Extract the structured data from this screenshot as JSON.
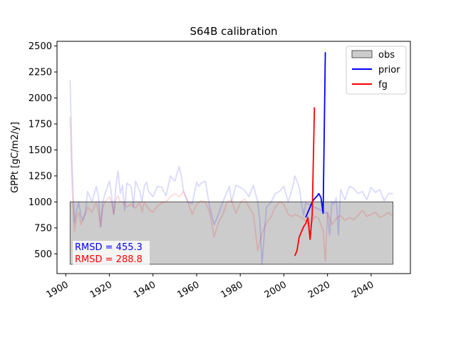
{
  "chart_data": {
    "type": "line",
    "title": "S64B calibration",
    "xlabel": "",
    "ylabel": "GPPt [gC/m2/y]",
    "xlim": [
      1896,
      2058
    ],
    "ylim": [
      310,
      2545
    ],
    "xticks": [
      "1900",
      "1920",
      "1940",
      "1960",
      "1980",
      "2000",
      "2020",
      "2040"
    ],
    "yticks": [
      "500",
      "750",
      "1000",
      "1250",
      "1500",
      "1750",
      "2000",
      "2250",
      "2500"
    ],
    "grid": false,
    "legend_position": "top-right",
    "obs_band": {
      "x": [
        1902,
        2050
      ],
      "y": [
        400,
        1000
      ],
      "color": "#cccccc"
    },
    "series": [
      {
        "name": "prior",
        "color": "#0000ff",
        "x": [
          2010,
          2011,
          2012,
          2013,
          2014,
          2015,
          2016,
          2017,
          2018,
          2019
        ],
        "y": [
          850,
          900,
          950,
          1000,
          1030,
          1050,
          1080,
          1040,
          890,
          2440
        ]
      },
      {
        "name": "fg",
        "color": "#ff0000",
        "x": [
          2005,
          2006,
          2007,
          2008,
          2009,
          2010,
          2011,
          2012,
          2013,
          2014
        ],
        "y": [
          480,
          530,
          660,
          710,
          760,
          790,
          850,
          640,
          880,
          1910
        ]
      },
      {
        "name": "prior_hist",
        "color": "#0000ff",
        "opacity": 0.15,
        "x": [
          1902,
          1903,
          1904,
          1905,
          1906,
          1907,
          1908,
          1909,
          1910,
          1912,
          1914,
          1915,
          1916,
          1917,
          1918,
          1920,
          1921,
          1922,
          1923,
          1924,
          1925,
          1926,
          1927,
          1928,
          1930,
          1931,
          1932,
          1934,
          1935,
          1936,
          1937,
          1938,
          1940,
          1942,
          1944,
          1945,
          1946,
          1948,
          1950,
          1952,
          1953,
          1954,
          1956,
          1958,
          1960,
          1961,
          1962,
          1964,
          1966,
          1968,
          1970,
          1972,
          1974,
          1975,
          1976,
          1978,
          1980,
          1982,
          1984,
          1986,
          1988,
          1989,
          1990,
          1991,
          1992,
          1994,
          1996,
          1998,
          2000,
          2002,
          2004,
          2005,
          2006,
          2007,
          2008,
          2009,
          2010,
          2020,
          2021,
          2022,
          2023,
          2024,
          2025,
          2026,
          2028,
          2030,
          2032,
          2034,
          2036,
          2038,
          2040,
          2042,
          2044,
          2046,
          2048,
          2050
        ],
        "y": [
          2170,
          1300,
          800,
          920,
          1000,
          860,
          820,
          900,
          1100,
          1000,
          1150,
          1050,
          760,
          1000,
          1080,
          1200,
          1070,
          880,
          1150,
          1300,
          1080,
          1160,
          920,
          1180,
          1150,
          950,
          1200,
          1100,
          1000,
          1150,
          1190,
          1100,
          1050,
          1150,
          1140,
          1100,
          1060,
          1250,
          1200,
          1340,
          1250,
          1100,
          1000,
          980,
          1190,
          1150,
          1180,
          1200,
          950,
          780,
          880,
          1000,
          1100,
          1150,
          1000,
          1160,
          1140,
          1110,
          1050,
          1160,
          1000,
          810,
          400,
          680,
          950,
          990,
          1080,
          1100,
          1150,
          1000,
          1140,
          1250,
          1200,
          1140,
          1000,
          870,
          990,
          890,
          680,
          1000,
          980,
          1040,
          680,
          1120,
          1020,
          1150,
          1130,
          1080,
          1100,
          1020,
          1140,
          1090,
          1120,
          1010,
          1080,
          1080
        ]
      },
      {
        "name": "fg_hist",
        "color": "#ff0000",
        "opacity": 0.15,
        "x": [
          1902,
          1903,
          1904,
          1905,
          1906,
          1907,
          1908,
          1909,
          1910,
          1912,
          1914,
          1915,
          1916,
          1917,
          1918,
          1920,
          1921,
          1922,
          1923,
          1924,
          1925,
          1926,
          1928,
          1930,
          1932,
          1934,
          1935,
          1936,
          1938,
          1940,
          1942,
          1944,
          1946,
          1948,
          1950,
          1952,
          1954,
          1956,
          1958,
          1960,
          1962,
          1964,
          1966,
          1968,
          1970,
          1972,
          1974,
          1976,
          1978,
          1980,
          1982,
          1984,
          1986,
          1988,
          1990,
          1992,
          1994,
          1996,
          1998,
          2000,
          2002,
          2004,
          2005,
          2006,
          2008,
          2010,
          2012,
          2014,
          2016,
          2018,
          2019,
          2020,
          2022,
          2024,
          2026,
          2028,
          2030,
          2032,
          2034,
          2036,
          2038,
          2040,
          2042,
          2044,
          2046,
          2048,
          2050
        ],
        "y": [
          1820,
          1100,
          720,
          850,
          900,
          780,
          850,
          880,
          950,
          900,
          1000,
          900,
          760,
          950,
          1000,
          1050,
          1000,
          880,
          1020,
          1060,
          1000,
          1000,
          950,
          980,
          940,
          1000,
          900,
          1000,
          930,
          900,
          960,
          990,
          1000,
          1050,
          1080,
          1050,
          1100,
          1000,
          880,
          980,
          1010,
          1000,
          900,
          660,
          800,
          880,
          1000,
          1020,
          890,
          990,
          1030,
          950,
          880,
          530,
          700,
          800,
          850,
          950,
          1000,
          980,
          880,
          860,
          880,
          870,
          850,
          820,
          760,
          860,
          840,
          720,
          430,
          900,
          780,
          840,
          870,
          820,
          850,
          830,
          870,
          920,
          860,
          880,
          900,
          850,
          870,
          900,
          860
        ]
      }
    ],
    "annotations": [
      {
        "text": "RMSD = 455.3",
        "color": "#0000ff"
      },
      {
        "text": "RMSD = 288.8",
        "color": "#ff0000"
      }
    ],
    "legend": [
      {
        "label": "obs",
        "kind": "patch",
        "color": "#cccccc"
      },
      {
        "label": "prior",
        "kind": "line",
        "color": "#0000ff"
      },
      {
        "label": "fg",
        "kind": "line",
        "color": "#ff0000"
      }
    ]
  }
}
